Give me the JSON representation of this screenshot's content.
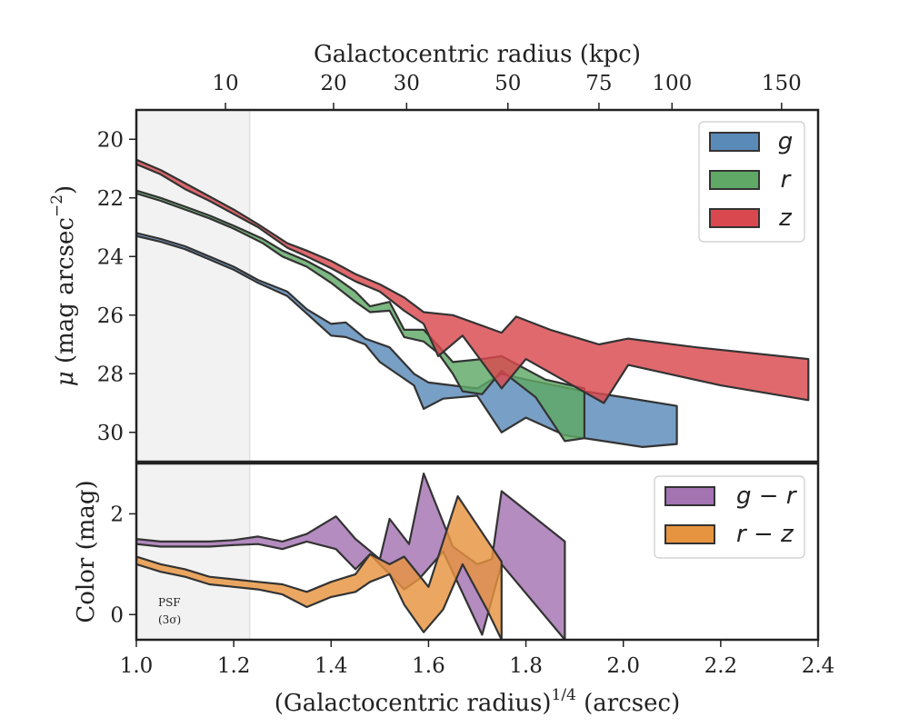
{
  "chart_data": [
    {
      "type": "area",
      "panel": "surface-brightness",
      "xlabel": "(Galactocentric radius)^1/4 (arcsec)",
      "xlabel_parts": {
        "main": "(Galactocentric radius)",
        "sup": "1/4",
        "unit": " (arcsec)"
      },
      "ylabel": "μ (mag arcsec⁻²)",
      "ylabel_parts": {
        "mu": "μ",
        "main": " (mag arcsec",
        "sup": "−2",
        "close": ")"
      },
      "top_axis_label": "Galactocentric radius (kpc)",
      "top_ticks": [
        {
          "label": "10",
          "x": 1.183
        },
        {
          "label": "20",
          "x": 1.405
        },
        {
          "label": "30",
          "x": 1.555
        },
        {
          "label": "50",
          "x": 1.763
        },
        {
          "label": "75",
          "x": 1.95
        },
        {
          "label": "100",
          "x": 2.1
        },
        {
          "label": "150",
          "x": 2.325
        }
      ],
      "xlim": [
        1.0,
        2.4
      ],
      "ylim": [
        31.0,
        19.0
      ],
      "y_inverted": true,
      "x_ticks": [
        1.0,
        1.2,
        1.4,
        1.6,
        1.8,
        2.0,
        2.2,
        2.4
      ],
      "x_tick_labels": [
        "1.0",
        "1.2",
        "1.4",
        "1.6",
        "1.8",
        "2.0",
        "2.2",
        "2.4"
      ],
      "y_ticks": [
        20,
        22,
        24,
        26,
        28,
        30
      ],
      "y_tick_labels": [
        "20",
        "22",
        "24",
        "26",
        "28",
        "30"
      ],
      "psf_region": [
        1.0,
        1.233
      ],
      "legend_position": "upper right",
      "series": [
        {
          "name": "g",
          "color": "#5a8ab8",
          "upper": [
            [
              1.0,
              23.2
            ],
            [
              1.05,
              23.4
            ],
            [
              1.1,
              23.65
            ],
            [
              1.15,
              24.0
            ],
            [
              1.2,
              24.35
            ],
            [
              1.25,
              24.8
            ],
            [
              1.31,
              25.2
            ],
            [
              1.35,
              25.8
            ],
            [
              1.4,
              26.3
            ],
            [
              1.43,
              26.25
            ],
            [
              1.47,
              26.8
            ],
            [
              1.52,
              27.1
            ],
            [
              1.57,
              28.0
            ],
            [
              1.6,
              28.3
            ],
            [
              1.7,
              28.5
            ],
            [
              1.75,
              28.0
            ],
            [
              1.8,
              28.2
            ],
            [
              1.92,
              28.6
            ],
            [
              2.0,
              28.8
            ],
            [
              2.11,
              29.1
            ]
          ],
          "lower": [
            [
              1.0,
              23.3
            ],
            [
              1.05,
              23.5
            ],
            [
              1.1,
              23.75
            ],
            [
              1.15,
              24.1
            ],
            [
              1.2,
              24.45
            ],
            [
              1.25,
              24.9
            ],
            [
              1.31,
              25.35
            ],
            [
              1.35,
              25.95
            ],
            [
              1.4,
              26.7
            ],
            [
              1.43,
              26.75
            ],
            [
              1.47,
              27.0
            ],
            [
              1.5,
              27.6
            ],
            [
              1.57,
              28.4
            ],
            [
              1.59,
              29.2
            ],
            [
              1.63,
              28.85
            ],
            [
              1.7,
              28.75
            ],
            [
              1.75,
              30.0
            ],
            [
              1.8,
              29.5
            ],
            [
              1.88,
              30.1
            ],
            [
              2.04,
              30.5
            ],
            [
              2.11,
              30.4
            ]
          ]
        },
        {
          "name": "r",
          "color": "#5fa865",
          "upper": [
            [
              1.0,
              21.75
            ],
            [
              1.05,
              22.0
            ],
            [
              1.1,
              22.3
            ],
            [
              1.15,
              22.6
            ],
            [
              1.2,
              22.95
            ],
            [
              1.26,
              23.4
            ],
            [
              1.3,
              23.8
            ],
            [
              1.35,
              24.15
            ],
            [
              1.4,
              24.6
            ],
            [
              1.45,
              25.2
            ],
            [
              1.48,
              25.7
            ],
            [
              1.52,
              25.55
            ],
            [
              1.55,
              26.5
            ],
            [
              1.59,
              26.5
            ],
            [
              1.65,
              27.6
            ],
            [
              1.71,
              27.5
            ],
            [
              1.75,
              27.4
            ],
            [
              1.84,
              28.2
            ],
            [
              1.92,
              28.5
            ]
          ],
          "lower": [
            [
              1.0,
              21.85
            ],
            [
              1.05,
              22.1
            ],
            [
              1.1,
              22.4
            ],
            [
              1.15,
              22.7
            ],
            [
              1.2,
              23.05
            ],
            [
              1.26,
              23.55
            ],
            [
              1.3,
              24.0
            ],
            [
              1.35,
              24.35
            ],
            [
              1.4,
              24.9
            ],
            [
              1.45,
              25.55
            ],
            [
              1.48,
              25.9
            ],
            [
              1.52,
              25.85
            ],
            [
              1.55,
              26.75
            ],
            [
              1.59,
              26.9
            ],
            [
              1.62,
              27.3
            ],
            [
              1.65,
              28.0
            ],
            [
              1.67,
              28.6
            ],
            [
              1.71,
              28.7
            ],
            [
              1.75,
              27.9
            ],
            [
              1.82,
              28.8
            ],
            [
              1.88,
              30.3
            ],
            [
              1.92,
              30.2
            ]
          ]
        },
        {
          "name": "z",
          "color": "#d9484e",
          "upper": [
            [
              1.0,
              20.7
            ],
            [
              1.05,
              21.05
            ],
            [
              1.1,
              21.5
            ],
            [
              1.15,
              21.95
            ],
            [
              1.2,
              22.4
            ],
            [
              1.25,
              22.9
            ],
            [
              1.31,
              23.55
            ],
            [
              1.35,
              23.8
            ],
            [
              1.4,
              24.15
            ],
            [
              1.45,
              24.6
            ],
            [
              1.5,
              24.95
            ],
            [
              1.55,
              25.4
            ],
            [
              1.59,
              25.9
            ],
            [
              1.65,
              26.0
            ],
            [
              1.75,
              26.6
            ],
            [
              1.78,
              26.05
            ],
            [
              1.85,
              26.5
            ],
            [
              1.95,
              27.0
            ],
            [
              2.01,
              26.8
            ],
            [
              2.15,
              27.1
            ],
            [
              2.38,
              27.5
            ]
          ],
          "lower": [
            [
              1.0,
              20.85
            ],
            [
              1.05,
              21.2
            ],
            [
              1.1,
              21.7
            ],
            [
              1.15,
              22.1
            ],
            [
              1.2,
              22.55
            ],
            [
              1.25,
              23.0
            ],
            [
              1.31,
              23.7
            ],
            [
              1.35,
              24.0
            ],
            [
              1.4,
              24.4
            ],
            [
              1.45,
              24.85
            ],
            [
              1.5,
              25.2
            ],
            [
              1.55,
              25.85
            ],
            [
              1.59,
              26.3
            ],
            [
              1.62,
              27.4
            ],
            [
              1.67,
              26.7
            ],
            [
              1.75,
              28.5
            ],
            [
              1.8,
              27.5
            ],
            [
              1.96,
              29.0
            ],
            [
              2.01,
              27.7
            ],
            [
              2.2,
              28.4
            ],
            [
              2.38,
              28.9
            ]
          ]
        }
      ]
    },
    {
      "type": "area",
      "panel": "color",
      "xlabel": "(Galactocentric radius)^1/4 (arcsec)",
      "ylabel": "Color (mag)",
      "xlim": [
        1.0,
        2.4
      ],
      "ylim": [
        -0.5,
        3.0
      ],
      "y_ticks": [
        0,
        2
      ],
      "y_tick_labels": [
        "0",
        "2"
      ],
      "annotation": {
        "line1": "PSF",
        "line2": "(3σ)"
      },
      "legend_position": "upper right",
      "series": [
        {
          "name": "g − r",
          "name_parts": [
            "g",
            " − ",
            "r"
          ],
          "color": "#a373b2",
          "upper": [
            [
              1.0,
              1.5
            ],
            [
              1.05,
              1.45
            ],
            [
              1.15,
              1.45
            ],
            [
              1.2,
              1.48
            ],
            [
              1.25,
              1.55
            ],
            [
              1.3,
              1.45
            ],
            [
              1.35,
              1.6
            ],
            [
              1.41,
              1.95
            ],
            [
              1.45,
              1.5
            ],
            [
              1.5,
              1.1
            ],
            [
              1.52,
              1.9
            ],
            [
              1.56,
              1.4
            ],
            [
              1.59,
              2.8
            ],
            [
              1.65,
              1.35
            ],
            [
              1.7,
              1.0
            ],
            [
              1.73,
              1.1
            ],
            [
              1.75,
              2.45
            ],
            [
              1.88,
              1.45
            ]
          ],
          "lower": [
            [
              1.0,
              1.4
            ],
            [
              1.05,
              1.35
            ],
            [
              1.15,
              1.35
            ],
            [
              1.2,
              1.38
            ],
            [
              1.25,
              1.4
            ],
            [
              1.3,
              1.3
            ],
            [
              1.35,
              1.45
            ],
            [
              1.41,
              1.3
            ],
            [
              1.45,
              0.9
            ],
            [
              1.48,
              1.2
            ],
            [
              1.52,
              0.8
            ],
            [
              1.55,
              0.5
            ],
            [
              1.58,
              0.7
            ],
            [
              1.63,
              1.25
            ],
            [
              1.71,
              -0.4
            ],
            [
              1.75,
              1.0
            ],
            [
              1.88,
              -0.5
            ]
          ]
        },
        {
          "name": "r − z",
          "name_parts": [
            "r",
            " − ",
            "z"
          ],
          "color": "#e69440",
          "upper": [
            [
              1.0,
              1.15
            ],
            [
              1.05,
              1.0
            ],
            [
              1.1,
              0.9
            ],
            [
              1.15,
              0.75
            ],
            [
              1.2,
              0.7
            ],
            [
              1.25,
              0.65
            ],
            [
              1.3,
              0.6
            ],
            [
              1.35,
              0.45
            ],
            [
              1.4,
              0.65
            ],
            [
              1.45,
              0.8
            ],
            [
              1.48,
              1.2
            ],
            [
              1.52,
              1.0
            ],
            [
              1.55,
              1.15
            ],
            [
              1.6,
              0.55
            ],
            [
              1.66,
              2.35
            ],
            [
              1.75,
              1.05
            ]
          ],
          "lower": [
            [
              1.0,
              1.0
            ],
            [
              1.05,
              0.85
            ],
            [
              1.1,
              0.75
            ],
            [
              1.15,
              0.6
            ],
            [
              1.2,
              0.55
            ],
            [
              1.25,
              0.5
            ],
            [
              1.3,
              0.4
            ],
            [
              1.35,
              0.15
            ],
            [
              1.4,
              0.35
            ],
            [
              1.45,
              0.45
            ],
            [
              1.48,
              0.65
            ],
            [
              1.52,
              0.8
            ],
            [
              1.55,
              0.2
            ],
            [
              1.59,
              -0.35
            ],
            [
              1.63,
              0.1
            ],
            [
              1.67,
              1.0
            ],
            [
              1.72,
              0.1
            ],
            [
              1.75,
              -0.5
            ]
          ]
        }
      ]
    }
  ]
}
